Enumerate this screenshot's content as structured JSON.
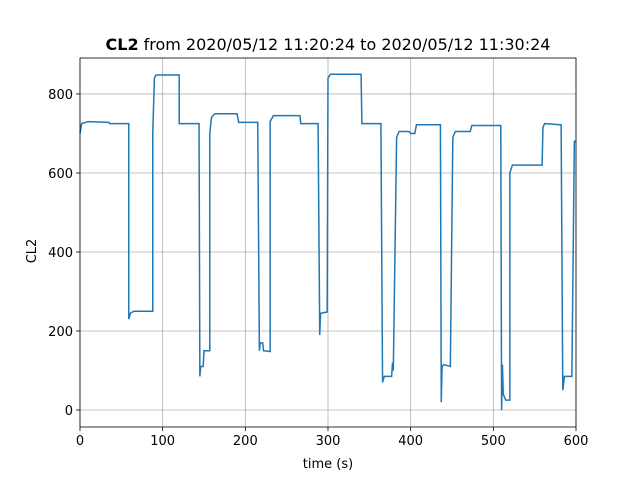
{
  "chart_data": {
    "type": "line",
    "title_bold": "CL2",
    "title": "from 2020/05/12 11:20:24 to 2020/05/12 11:30:24",
    "x_label": "time (s)",
    "y_label": "CL2",
    "xlim": [
      0,
      600
    ],
    "ylim": [
      -43,
      891
    ],
    "xticks": [
      0,
      100,
      200,
      300,
      400,
      500,
      600
    ],
    "yticks": [
      0,
      200,
      400,
      600,
      800
    ],
    "grid": true,
    "series": [
      {
        "name": "CL2",
        "color": "#1f77b4",
        "x": [
          0,
          2,
          10,
          35,
          36,
          59,
          59,
          61,
          65,
          88,
          88,
          90,
          92,
          120,
          120,
          144,
          145,
          146,
          149,
          150,
          157,
          157,
          159,
          163,
          190,
          192,
          215,
          217,
          218,
          221,
          222,
          230,
          230,
          234,
          266,
          267,
          288,
          290,
          291,
          299,
          300,
          303,
          340,
          341,
          364,
          366,
          368,
          377,
          378,
          379,
          383,
          386,
          398,
          400,
          405,
          407,
          436,
          437,
          438,
          440,
          448,
          451,
          454,
          472,
          474,
          509,
          510,
          511,
          512,
          515,
          520,
          520,
          523,
          559,
          560,
          562,
          582,
          584,
          586,
          595,
          598,
          600
        ],
        "values": [
          700,
          725,
          730,
          728,
          725,
          725,
          230,
          245,
          250,
          250,
          700,
          840,
          848,
          848,
          725,
          725,
          85,
          110,
          110,
          150,
          150,
          700,
          740,
          750,
          750,
          728,
          728,
          150,
          170,
          170,
          150,
          148,
          730,
          745,
          745,
          725,
          725,
          190,
          245,
          248,
          840,
          850,
          850,
          725,
          725,
          70,
          85,
          85,
          120,
          100,
          690,
          705,
          705,
          700,
          700,
          722,
          722,
          20,
          110,
          115,
          110,
          690,
          705,
          705,
          720,
          720,
          0,
          115,
          40,
          25,
          25,
          600,
          620,
          620,
          715,
          725,
          722,
          50,
          85,
          85,
          680,
          680
        ]
      }
    ]
  }
}
